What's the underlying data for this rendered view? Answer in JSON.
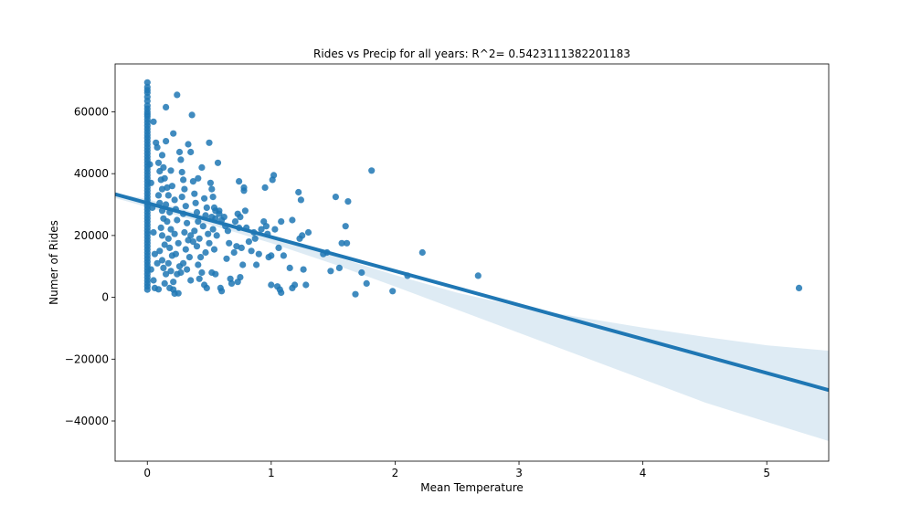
{
  "chart_data": {
    "type": "scatter",
    "title": "Rides vs Precip for all years: R^2= 0.5423111382201183",
    "xlabel": "Mean Temperature",
    "ylabel": "Numer of Rides",
    "xlim": [
      -0.26,
      5.5
    ],
    "ylim": [
      -53000,
      75500
    ],
    "xticks": [
      0,
      1,
      2,
      3,
      4,
      5
    ],
    "yticks": [
      -40000,
      -20000,
      0,
      20000,
      40000,
      60000
    ],
    "ytick_labels": [
      "−40000",
      "−20000",
      "0",
      "20000",
      "40000",
      "60000"
    ],
    "grid": false,
    "colors": {
      "points": "#1f77b4",
      "line": "#1f77b4",
      "band": "#1f77b4"
    },
    "regression": {
      "intercept": 30500,
      "slope": -11000
    },
    "confidence_band": {
      "x": [
        -0.26,
        0,
        0.5,
        1,
        1.5,
        2,
        2.5,
        3,
        3.5,
        4,
        4.5,
        5,
        5.5
      ],
      "lower": [
        32100,
        29200,
        23600,
        17500,
        10800,
        3500,
        -4000,
        -11500,
        -19000,
        -26500,
        -34000,
        -40300,
        -46500
      ],
      "upper": [
        33600,
        31800,
        26000,
        19800,
        13400,
        7200,
        1500,
        -3000,
        -6500,
        -9800,
        -12800,
        -15500,
        -17300
      ]
    },
    "points": [
      [
        0,
        69500
      ],
      [
        0,
        68000
      ],
      [
        0,
        67000
      ],
      [
        0,
        66200
      ],
      [
        0,
        64800
      ],
      [
        0,
        63500
      ],
      [
        0,
        62000
      ],
      [
        0,
        61000
      ],
      [
        0,
        60000
      ],
      [
        0,
        59200
      ],
      [
        0,
        58500
      ],
      [
        0,
        57500
      ],
      [
        0,
        56500
      ],
      [
        0,
        55500
      ],
      [
        0,
        54500
      ],
      [
        0,
        53500
      ],
      [
        0,
        52500
      ],
      [
        0,
        51500
      ],
      [
        0,
        50500
      ],
      [
        0,
        49500
      ],
      [
        0,
        48500
      ],
      [
        0,
        47500
      ],
      [
        0,
        46500
      ],
      [
        0,
        45500
      ],
      [
        0,
        44500
      ],
      [
        0,
        43500
      ],
      [
        0,
        42500
      ],
      [
        0,
        41500
      ],
      [
        0,
        40500
      ],
      [
        0,
        39500
      ],
      [
        0,
        38500
      ],
      [
        0,
        37500
      ],
      [
        0,
        36500
      ],
      [
        0,
        35500
      ],
      [
        0,
        34500
      ],
      [
        0,
        33500
      ],
      [
        0,
        32500
      ],
      [
        0,
        31500
      ],
      [
        0,
        30500
      ],
      [
        0,
        29500
      ],
      [
        0,
        28500
      ],
      [
        0,
        27500
      ],
      [
        0,
        26500
      ],
      [
        0,
        25500
      ],
      [
        0,
        24500
      ],
      [
        0,
        23500
      ],
      [
        0,
        22500
      ],
      [
        0,
        21500
      ],
      [
        0,
        20500
      ],
      [
        0,
        19500
      ],
      [
        0,
        18500
      ],
      [
        0,
        17500
      ],
      [
        0,
        16500
      ],
      [
        0,
        15500
      ],
      [
        0,
        14500
      ],
      [
        0,
        13500
      ],
      [
        0,
        12500
      ],
      [
        0,
        11500
      ],
      [
        0,
        10500
      ],
      [
        0,
        9500
      ],
      [
        0,
        8500
      ],
      [
        0,
        7500
      ],
      [
        0,
        6500
      ],
      [
        0,
        5500
      ],
      [
        0,
        4500
      ],
      [
        0,
        3500
      ],
      [
        0,
        2500
      ],
      [
        0.02,
        43000
      ],
      [
        0.03,
        37000
      ],
      [
        0.04,
        29000
      ],
      [
        0.05,
        21000
      ],
      [
        0.06,
        14000
      ],
      [
        0.03,
        9000
      ],
      [
        0.05,
        5500
      ],
      [
        0.06,
        3000
      ],
      [
        0.05,
        56800
      ],
      [
        0.07,
        50000
      ],
      [
        0.08,
        48500
      ],
      [
        0.09,
        43500
      ],
      [
        0.1,
        40800
      ],
      [
        0.11,
        38000
      ],
      [
        0.12,
        35000
      ],
      [
        0.09,
        33000
      ],
      [
        0.1,
        30500
      ],
      [
        0.12,
        28000
      ],
      [
        0.13,
        25500
      ],
      [
        0.11,
        22500
      ],
      [
        0.12,
        20000
      ],
      [
        0.14,
        17000
      ],
      [
        0.1,
        15000
      ],
      [
        0.12,
        12000
      ],
      [
        0.13,
        9500
      ],
      [
        0.15,
        7500
      ],
      [
        0.14,
        4500
      ],
      [
        0.09,
        2600
      ],
      [
        0.12,
        46000
      ],
      [
        0.13,
        42000
      ],
      [
        0.15,
        50500
      ],
      [
        0.14,
        38500
      ],
      [
        0.16,
        35500
      ],
      [
        0.17,
        33000
      ],
      [
        0.15,
        30000
      ],
      [
        0.18,
        27500
      ],
      [
        0.16,
        24500
      ],
      [
        0.19,
        22000
      ],
      [
        0.17,
        19000
      ],
      [
        0.18,
        16000
      ],
      [
        0.2,
        13500
      ],
      [
        0.17,
        11000
      ],
      [
        0.19,
        8500
      ],
      [
        0.21,
        5000
      ],
      [
        0.15,
        61500
      ],
      [
        0.19,
        41000
      ],
      [
        0.2,
        36000
      ],
      [
        0.21,
        53000
      ],
      [
        0.22,
        31500
      ],
      [
        0.23,
        28500
      ],
      [
        0.24,
        25000
      ],
      [
        0.22,
        20500
      ],
      [
        0.25,
        17500
      ],
      [
        0.23,
        14000
      ],
      [
        0.26,
        10000
      ],
      [
        0.24,
        7500
      ],
      [
        0.22,
        1200
      ],
      [
        0.25,
        1300
      ],
      [
        0.24,
        65500
      ],
      [
        0.26,
        47000
      ],
      [
        0.27,
        44500
      ],
      [
        0.28,
        40500
      ],
      [
        0.29,
        38000
      ],
      [
        0.3,
        35000
      ],
      [
        0.28,
        32500
      ],
      [
        0.31,
        29500
      ],
      [
        0.29,
        27000
      ],
      [
        0.32,
        24000
      ],
      [
        0.3,
        21000
      ],
      [
        0.33,
        18500
      ],
      [
        0.31,
        15500
      ],
      [
        0.34,
        13000
      ],
      [
        0.32,
        9000
      ],
      [
        0.35,
        5500
      ],
      [
        0.33,
        49500
      ],
      [
        0.35,
        47000
      ],
      [
        0.36,
        59000
      ],
      [
        0.37,
        37500
      ],
      [
        0.38,
        33500
      ],
      [
        0.39,
        30500
      ],
      [
        0.4,
        27500
      ],
      [
        0.41,
        24500
      ],
      [
        0.38,
        21500
      ],
      [
        0.42,
        19000
      ],
      [
        0.4,
        16500
      ],
      [
        0.43,
        13000
      ],
      [
        0.41,
        10500
      ],
      [
        0.44,
        8000
      ],
      [
        0.42,
        6000
      ],
      [
        0.41,
        38500
      ],
      [
        0.44,
        42000
      ],
      [
        0.46,
        32000
      ],
      [
        0.48,
        29000
      ],
      [
        0.47,
        26500
      ],
      [
        0.45,
        23000
      ],
      [
        0.49,
        20500
      ],
      [
        0.5,
        17500
      ],
      [
        0.47,
        14500
      ],
      [
        0.46,
        4000
      ],
      [
        0.48,
        3000
      ],
      [
        0.5,
        50000
      ],
      [
        0.51,
        37000
      ],
      [
        0.52,
        35000
      ],
      [
        0.53,
        32500
      ],
      [
        0.54,
        29000
      ],
      [
        0.52,
        26000
      ],
      [
        0.55,
        25500
      ],
      [
        0.53,
        22000
      ],
      [
        0.56,
        20000
      ],
      [
        0.54,
        15500
      ],
      [
        0.52,
        8000
      ],
      [
        0.55,
        7500
      ],
      [
        0.57,
        43500
      ],
      [
        0.58,
        28000
      ],
      [
        0.59,
        3000
      ],
      [
        0.6,
        2000
      ],
      [
        0.62,
        26000
      ],
      [
        0.63,
        23000
      ],
      [
        0.65,
        21500
      ],
      [
        0.66,
        17500
      ],
      [
        0.64,
        12500
      ],
      [
        0.67,
        6000
      ],
      [
        0.68,
        4500
      ],
      [
        0.7,
        14500
      ],
      [
        0.71,
        24500
      ],
      [
        0.72,
        16500
      ],
      [
        0.73,
        27000
      ],
      [
        0.74,
        22500
      ],
      [
        0.75,
        26000
      ],
      [
        0.74,
        37500
      ],
      [
        0.76,
        16000
      ],
      [
        0.77,
        10500
      ],
      [
        0.75,
        6500
      ],
      [
        0.73,
        5000
      ],
      [
        0.78,
        34500
      ],
      [
        0.79,
        28000
      ],
      [
        0.78,
        35500
      ],
      [
        0.8,
        22500
      ],
      [
        0.82,
        18000
      ],
      [
        0.84,
        15000
      ],
      [
        0.86,
        21000
      ],
      [
        0.87,
        19000
      ],
      [
        0.88,
        10500
      ],
      [
        0.9,
        14000
      ],
      [
        0.92,
        22000
      ],
      [
        0.94,
        24500
      ],
      [
        0.95,
        35500
      ],
      [
        0.96,
        23000
      ],
      [
        0.97,
        20500
      ],
      [
        0.98,
        13000
      ],
      [
        1.0,
        13500
      ],
      [
        1.01,
        38000
      ],
      [
        1.02,
        39500
      ],
      [
        1.03,
        22000
      ],
      [
        1.0,
        4000
      ],
      [
        1.05,
        3500
      ],
      [
        1.06,
        16000
      ],
      [
        1.07,
        2500
      ],
      [
        1.08,
        1500
      ],
      [
        1.08,
        24500
      ],
      [
        1.1,
        13500
      ],
      [
        1.15,
        9500
      ],
      [
        1.17,
        25000
      ],
      [
        1.17,
        3000
      ],
      [
        1.19,
        4000
      ],
      [
        1.22,
        34000
      ],
      [
        1.23,
        19000
      ],
      [
        1.24,
        31500
      ],
      [
        1.25,
        20000
      ],
      [
        1.26,
        9000
      ],
      [
        1.28,
        4000
      ],
      [
        1.3,
        21000
      ],
      [
        1.42,
        14000
      ],
      [
        1.45,
        14500
      ],
      [
        1.48,
        8500
      ],
      [
        1.52,
        32500
      ],
      [
        1.55,
        9500
      ],
      [
        1.57,
        17500
      ],
      [
        1.6,
        23000
      ],
      [
        1.61,
        17500
      ],
      [
        1.62,
        31000
      ],
      [
        1.68,
        1000
      ],
      [
        1.73,
        8000
      ],
      [
        1.77,
        4500
      ],
      [
        1.81,
        41000
      ],
      [
        1.98,
        2000
      ],
      [
        2.1,
        7000
      ],
      [
        2.22,
        14500
      ],
      [
        2.67,
        7000
      ],
      [
        5.26,
        3000
      ],
      [
        0.55,
        28000
      ],
      [
        0.58,
        27000
      ],
      [
        0.6,
        25000
      ],
      [
        0.35,
        20000
      ],
      [
        0.37,
        18000
      ],
      [
        0.29,
        11000
      ],
      [
        0.27,
        8000
      ],
      [
        0.18,
        3000
      ],
      [
        0.21,
        2500
      ],
      [
        0.08,
        11000
      ]
    ]
  }
}
